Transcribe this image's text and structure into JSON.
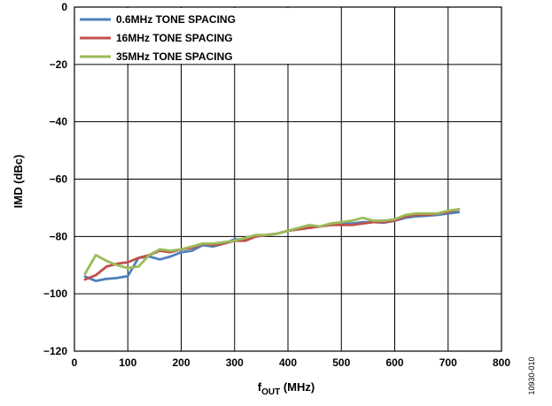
{
  "chart_data": {
    "type": "line",
    "title": "",
    "xlabel_main": "f",
    "xlabel_sub": "OUT",
    "xlabel_rest": " (MHz)",
    "ylabel": "IMD (dBc)",
    "xlim": [
      0,
      800
    ],
    "ylim": [
      -120,
      0
    ],
    "grid": true,
    "legend_position": "top-left",
    "x_ticks": [
      0,
      100,
      200,
      300,
      400,
      500,
      600,
      700,
      800
    ],
    "y_ticks": [
      0,
      -20,
      -40,
      -60,
      -80,
      -100,
      -120
    ],
    "y_tick_labels": [
      "0",
      "−20",
      "−40",
      "−60",
      "−80",
      "−100",
      "−120"
    ],
    "series": [
      {
        "name": "0.6MHz TONE SPACING",
        "color": "#4f81bd",
        "x": [
          20,
          40,
          60,
          80,
          100,
          120,
          140,
          160,
          180,
          200,
          220,
          240,
          260,
          280,
          300,
          320,
          340,
          360,
          380,
          400,
          420,
          440,
          460,
          480,
          500,
          520,
          540,
          560,
          580,
          600,
          620,
          640,
          660,
          680,
          700,
          720
        ],
        "y": [
          -94,
          -95.5,
          -94.8,
          -94.5,
          -93.8,
          -87.5,
          -87,
          -88,
          -87,
          -85.5,
          -85,
          -83,
          -83.5,
          -82.5,
          -81,
          -81,
          -80,
          -79.5,
          -79,
          -78,
          -77.5,
          -77,
          -76.5,
          -76,
          -75.5,
          -75.5,
          -75,
          -75,
          -75.2,
          -74.5,
          -73.5,
          -73,
          -72.8,
          -72.5,
          -72,
          -71.5
        ]
      },
      {
        "name": "16MHz TONE SPACING",
        "color": "#c0504d",
        "x": [
          20,
          40,
          60,
          80,
          100,
          120,
          140,
          160,
          180,
          200,
          220,
          240,
          260,
          280,
          300,
          320,
          340,
          360,
          380,
          400,
          420,
          440,
          460,
          480,
          500,
          520,
          540,
          560,
          580,
          600,
          620,
          640,
          660,
          680,
          700,
          720
        ],
        "y": [
          -95,
          -93.5,
          -90.5,
          -89.5,
          -89,
          -87.5,
          -86.5,
          -85,
          -85.5,
          -84.5,
          -84,
          -82.5,
          -83,
          -82.5,
          -81.5,
          -81.5,
          -80,
          -79.5,
          -79,
          -78,
          -77.5,
          -77,
          -76.5,
          -76,
          -76,
          -76,
          -75.5,
          -75,
          -75,
          -74.5,
          -73,
          -72.5,
          -72.5,
          -72,
          -71.5,
          -70.5
        ]
      },
      {
        "name": "35MHz TONE SPACING",
        "color": "#9bbb59",
        "x": [
          20,
          40,
          60,
          80,
          100,
          120,
          140,
          160,
          180,
          200,
          220,
          240,
          260,
          280,
          300,
          320,
          340,
          360,
          380,
          400,
          420,
          440,
          460,
          480,
          500,
          520,
          540,
          560,
          580,
          600,
          620,
          640,
          660,
          680,
          700,
          720
        ],
        "y": [
          -93,
          -86.5,
          -88.5,
          -90,
          -91,
          -90.5,
          -86.5,
          -84.5,
          -85,
          -84.5,
          -83.5,
          -82.5,
          -82.5,
          -82,
          -81.5,
          -80.5,
          -79.5,
          -79.5,
          -79,
          -78,
          -77,
          -76,
          -76.5,
          -75.5,
          -75,
          -74.5,
          -73.5,
          -74.5,
          -74.5,
          -74,
          -72.5,
          -72,
          -72,
          -72,
          -71,
          -70.5
        ]
      }
    ]
  },
  "figure_id": "10930-010"
}
